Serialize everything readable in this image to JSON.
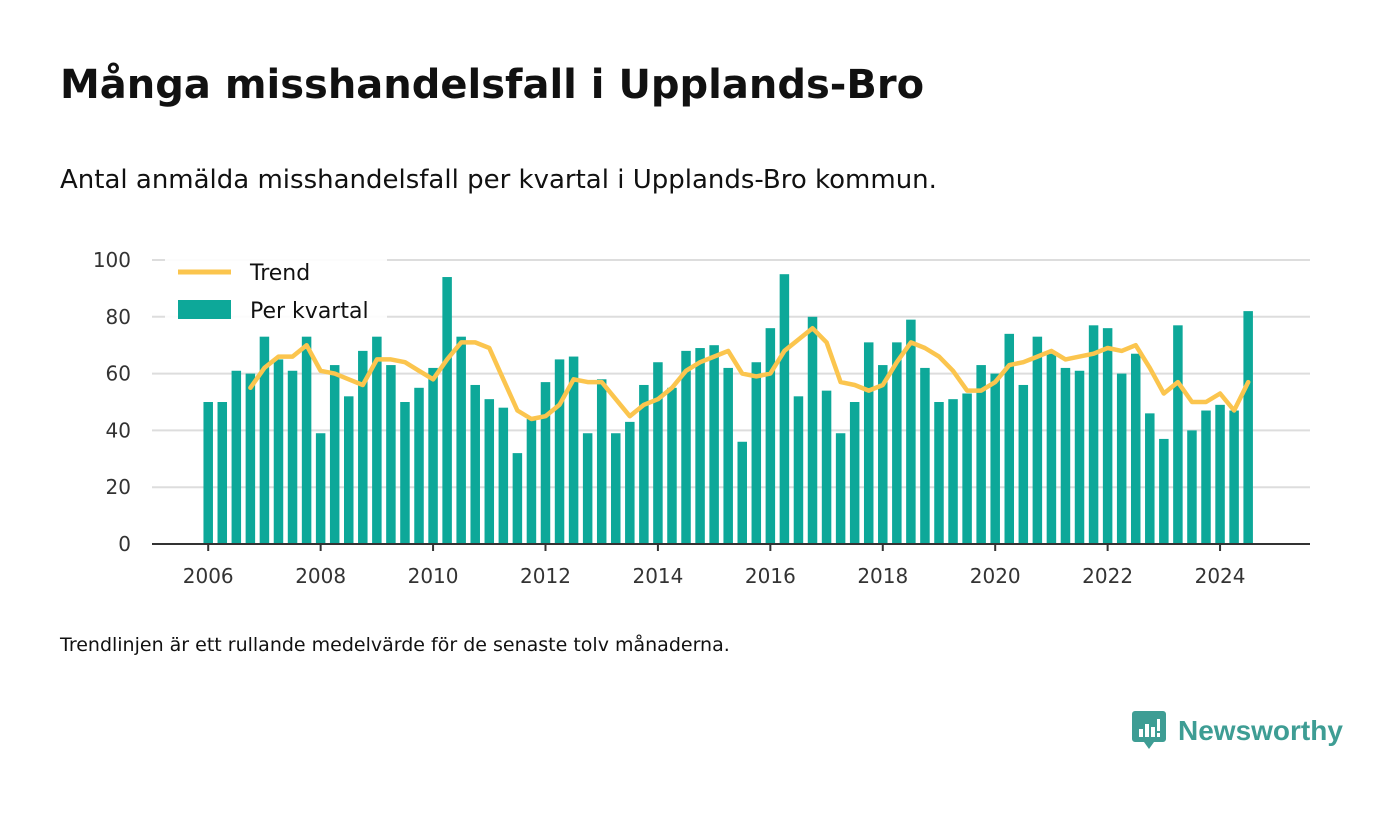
{
  "colors": {
    "bar": "#0da899",
    "trend": "#fbc54e",
    "grid": "#dddddd",
    "axis": "#333333",
    "brand": "#3e9d94"
  },
  "footnote": "Trendlinjen är ett rullande medelvärde för de senaste tolv månaderna.",
  "brand": {
    "name": "Newsworthy",
    "icon": "newsworthy-logo-icon"
  },
  "chart_data": {
    "type": "bar",
    "title": "Många misshandelsfall i Upplands-Bro",
    "subtitle": "Antal anmälda misshandelsfall per kvartal i Upplands-Bro kommun.",
    "xlabel": "",
    "ylabel": "",
    "ylim": [
      0,
      100
    ],
    "xlim": [
      2005.0,
      2025.6
    ],
    "yticks": [
      "0",
      "20",
      "40",
      "60",
      "80",
      "100"
    ],
    "xticks": [
      "2006",
      "2008",
      "2010",
      "2012",
      "2014",
      "2016",
      "2018",
      "2020",
      "2022",
      "2024"
    ],
    "grid": true,
    "legend_position": "top-left",
    "legend": [
      "Trend",
      "Per kvartal"
    ],
    "x": [
      2006.0,
      2006.25,
      2006.5,
      2006.75,
      2007.0,
      2007.25,
      2007.5,
      2007.75,
      2008.0,
      2008.25,
      2008.5,
      2008.75,
      2009.0,
      2009.25,
      2009.5,
      2009.75,
      2010.0,
      2010.25,
      2010.5,
      2010.75,
      2011.0,
      2011.25,
      2011.5,
      2011.75,
      2012.0,
      2012.25,
      2012.5,
      2012.75,
      2013.0,
      2013.25,
      2013.5,
      2013.75,
      2014.0,
      2014.25,
      2014.5,
      2014.75,
      2015.0,
      2015.25,
      2015.5,
      2015.75,
      2016.0,
      2016.25,
      2016.5,
      2016.75,
      2017.0,
      2017.25,
      2017.5,
      2017.75,
      2018.0,
      2018.25,
      2018.5,
      2018.75,
      2019.0,
      2019.25,
      2019.5,
      2019.75,
      2020.0,
      2020.25,
      2020.5,
      2020.75,
      2021.0,
      2021.25,
      2021.5,
      2021.75,
      2022.0,
      2022.25,
      2022.5,
      2022.75,
      2023.0,
      2023.25,
      2023.5,
      2023.75,
      2024.0,
      2024.25,
      2024.5
    ],
    "series": [
      {
        "name": "Per kvartal",
        "type": "bar",
        "values": [
          50,
          50,
          61,
          60,
          73,
          65,
          61,
          73,
          39,
          63,
          52,
          68,
          73,
          63,
          50,
          55,
          62,
          94,
          73,
          56,
          51,
          48,
          32,
          44,
          57,
          65,
          66,
          39,
          58,
          39,
          43,
          56,
          64,
          55,
          68,
          69,
          70,
          62,
          36,
          64,
          76,
          95,
          52,
          80,
          54,
          39,
          50,
          71,
          63,
          71,
          79,
          62,
          50,
          51,
          53,
          63,
          60,
          74,
          56,
          73,
          67,
          62,
          61,
          77,
          76,
          60,
          67,
          46,
          37,
          77,
          40,
          47,
          49,
          47,
          82
        ]
      },
      {
        "name": "Trend",
        "type": "line",
        "x": [
          2006.75,
          2007.0,
          2007.25,
          2007.5,
          2007.75,
          2008.0,
          2008.25,
          2008.5,
          2008.75,
          2009.0,
          2009.25,
          2009.5,
          2009.75,
          2010.0,
          2010.25,
          2010.5,
          2010.75,
          2011.0,
          2011.25,
          2011.5,
          2011.75,
          2012.0,
          2012.25,
          2012.5,
          2012.75,
          2013.0,
          2013.25,
          2013.5,
          2013.75,
          2014.0,
          2014.25,
          2014.5,
          2014.75,
          2015.0,
          2015.25,
          2015.5,
          2015.75,
          2016.0,
          2016.25,
          2016.5,
          2016.75,
          2017.0,
          2017.25,
          2017.5,
          2017.75,
          2018.0,
          2018.25,
          2018.5,
          2018.75,
          2019.0,
          2019.25,
          2019.5,
          2019.75,
          2020.0,
          2020.25,
          2020.5,
          2020.75,
          2021.0,
          2021.25,
          2021.5,
          2021.75,
          2022.0,
          2022.25,
          2022.5,
          2022.75,
          2023.0,
          2023.25,
          2023.5,
          2023.75,
          2024.0,
          2024.25,
          2024.5
        ],
        "values": [
          55,
          62,
          66,
          66,
          70,
          61,
          60,
          58,
          56,
          65,
          65,
          64,
          61,
          58,
          65,
          71,
          71,
          69,
          58,
          47,
          44,
          45,
          49,
          58,
          57,
          57,
          51,
          45,
          49,
          51,
          55,
          61,
          64,
          66,
          68,
          60,
          59,
          60,
          68,
          72,
          76,
          71,
          57,
          56,
          54,
          56,
          64,
          71,
          69,
          66,
          61,
          54,
          54,
          57,
          63,
          64,
          66,
          68,
          65,
          66,
          67,
          69,
          68,
          70,
          62,
          53,
          57,
          50,
          50,
          53,
          47,
          57
        ]
      }
    ]
  }
}
